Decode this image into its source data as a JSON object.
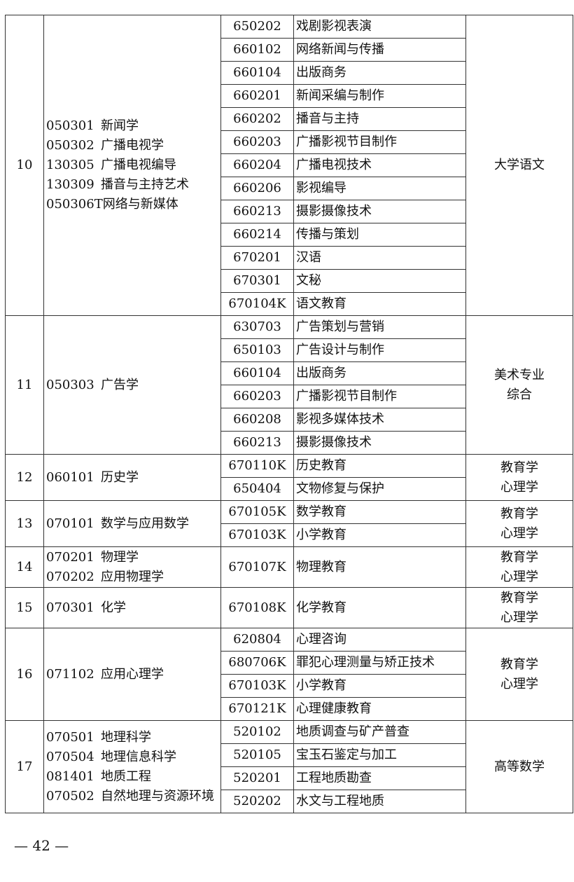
{
  "rows": [
    {
      "no": "10",
      "majors": [
        [
          "050301",
          "新闻学"
        ],
        [
          "050302",
          "广播电视学"
        ],
        [
          "130305",
          "广播电视编导"
        ],
        [
          "130309",
          "播音与主持艺术"
        ],
        [
          "050306T",
          "网络与新媒体"
        ]
      ],
      "vocational": [
        [
          "650202",
          "戏剧影视表演"
        ],
        [
          "660102",
          "网络新闻与传播"
        ],
        [
          "660104",
          "出版商务"
        ],
        [
          "660201",
          "新闻采编与制作"
        ],
        [
          "660202",
          "播音与主持"
        ],
        [
          "660203",
          "广播影视节目制作"
        ],
        [
          "660204",
          "广播电视技术"
        ],
        [
          "660206",
          "影视编导"
        ],
        [
          "660213",
          "摄影摄像技术"
        ],
        [
          "660214",
          "传播与策划"
        ],
        [
          "670201",
          "汉语"
        ],
        [
          "670301",
          "文秘"
        ],
        [
          "670104K",
          "语文教育"
        ]
      ],
      "subjects": [
        "大学语文"
      ]
    },
    {
      "no": "11",
      "majors": [
        [
          "050303",
          "广告学"
        ]
      ],
      "vocational": [
        [
          "630703",
          "广告策划与营销"
        ],
        [
          "650103",
          "广告设计与制作"
        ],
        [
          "660104",
          "出版商务"
        ],
        [
          "660203",
          "广播影视节目制作"
        ],
        [
          "660208",
          "影视多媒体技术"
        ],
        [
          "660213",
          "摄影摄像技术"
        ]
      ],
      "subjects": [
        "美术专业",
        "综合"
      ]
    },
    {
      "no": "12",
      "majors": [
        [
          "060101",
          "历史学"
        ]
      ],
      "vocational": [
        [
          "670110K",
          "历史教育"
        ],
        [
          "650404",
          "文物修复与保护"
        ]
      ],
      "subjects": [
        "教育学",
        "心理学"
      ]
    },
    {
      "no": "13",
      "majors": [
        [
          "070101",
          "数学与应用数学"
        ]
      ],
      "vocational": [
        [
          "670105K",
          "数学教育"
        ],
        [
          "670103K",
          "小学教育"
        ]
      ],
      "subjects": [
        "教育学",
        "心理学"
      ]
    },
    {
      "no": "14",
      "majors": [
        [
          "070201",
          "物理学"
        ],
        [
          "070202",
          "应用物理学"
        ]
      ],
      "vocational": [
        [
          "670107K",
          "物理教育"
        ]
      ],
      "subjects": [
        "教育学",
        "心理学"
      ]
    },
    {
      "no": "15",
      "majors": [
        [
          "070301",
          "化学"
        ]
      ],
      "vocational": [
        [
          "670108K",
          "化学教育"
        ]
      ],
      "subjects": [
        "教育学",
        "心理学"
      ]
    },
    {
      "no": "16",
      "majors": [
        [
          "071102",
          "应用心理学"
        ]
      ],
      "vocational": [
        [
          "620804",
          "心理咨询"
        ],
        [
          "680706K",
          "罪犯心理测量与矫正技术"
        ],
        [
          "670103K",
          "小学教育"
        ],
        [
          "670121K",
          "心理健康教育"
        ]
      ],
      "subjects": [
        "教育学",
        "心理学"
      ]
    },
    {
      "no": "17",
      "majors": [
        [
          "070501",
          "地理科学"
        ],
        [
          "070504",
          "地理信息科学"
        ],
        [
          "081401",
          "地质工程"
        ],
        [
          "070502",
          "自然地理与资源环境"
        ]
      ],
      "vocational": [
        [
          "520102",
          "地质调查与矿产普查"
        ],
        [
          "520105",
          "宝玉石鉴定与加工"
        ],
        [
          "520201",
          "工程地质勘查"
        ],
        [
          "520202",
          "水文与工程地质"
        ]
      ],
      "subjects": [
        "高等数学"
      ]
    }
  ],
  "page_number": "— 42 —"
}
